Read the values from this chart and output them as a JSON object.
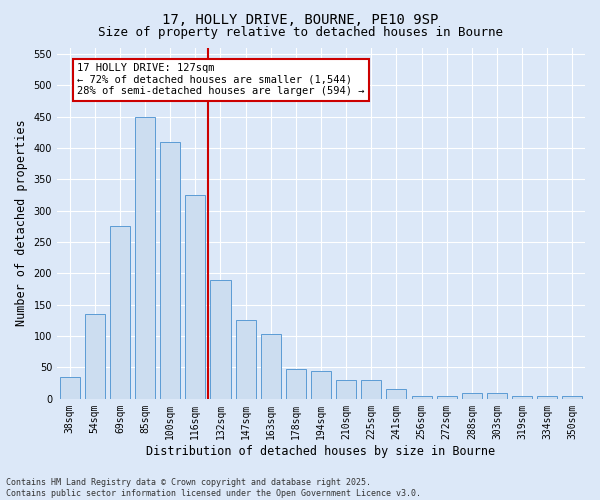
{
  "title1": "17, HOLLY DRIVE, BOURNE, PE10 9SP",
  "title2": "Size of property relative to detached houses in Bourne",
  "xlabel": "Distribution of detached houses by size in Bourne",
  "ylabel": "Number of detached properties",
  "categories": [
    "38sqm",
    "54sqm",
    "69sqm",
    "85sqm",
    "100sqm",
    "116sqm",
    "132sqm",
    "147sqm",
    "163sqm",
    "178sqm",
    "194sqm",
    "210sqm",
    "225sqm",
    "241sqm",
    "256sqm",
    "272sqm",
    "288sqm",
    "303sqm",
    "319sqm",
    "334sqm",
    "350sqm"
  ],
  "values": [
    35,
    135,
    275,
    450,
    410,
    325,
    190,
    125,
    103,
    47,
    45,
    30,
    30,
    15,
    5,
    5,
    10,
    10,
    5,
    5,
    5
  ],
  "bar_color": "#ccddf0",
  "bar_edge_color": "#5b9bd5",
  "vline_index": 6,
  "vline_color": "#cc0000",
  "annotation_text": "17 HOLLY DRIVE: 127sqm\n← 72% of detached houses are smaller (1,544)\n28% of semi-detached houses are larger (594) →",
  "annotation_box_color": "#ffffff",
  "annotation_box_edge_color": "#cc0000",
  "ylim": [
    0,
    560
  ],
  "yticks": [
    0,
    50,
    100,
    150,
    200,
    250,
    300,
    350,
    400,
    450,
    500,
    550
  ],
  "bg_color": "#dce8f8",
  "plot_bg_color": "#dce8f8",
  "grid_color": "#ffffff",
  "footer_text": "Contains HM Land Registry data © Crown copyright and database right 2025.\nContains public sector information licensed under the Open Government Licence v3.0.",
  "title_fontsize": 10,
  "subtitle_fontsize": 9,
  "tick_fontsize": 7,
  "label_fontsize": 8.5,
  "annotation_fontsize": 7.5,
  "footer_fontsize": 6,
  "bar_width": 0.8
}
